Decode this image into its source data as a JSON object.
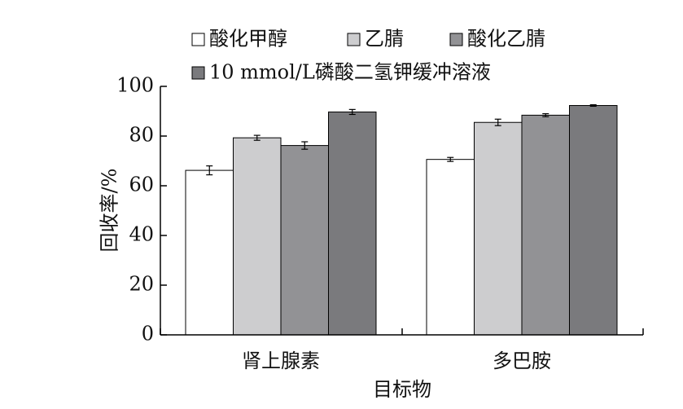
{
  "chart_data": {
    "type": "bar",
    "title": "",
    "xlabel": "目标物",
    "ylabel": "回收率/%",
    "ylim": [
      0,
      100
    ],
    "yticks": [
      0,
      20,
      40,
      60,
      80,
      100
    ],
    "grid": false,
    "legend_position": "top",
    "categories": [
      "肾上腺素",
      "多巴胺"
    ],
    "series": [
      {
        "name": "酸化甲醇",
        "color": "#ffffff",
        "values": [
          66.2,
          70.6
        ],
        "errors": [
          1.8,
          0.8
        ]
      },
      {
        "name": "乙腈",
        "color": "#cdcdcf",
        "values": [
          79.3,
          85.5
        ],
        "errors": [
          1.0,
          1.3
        ]
      },
      {
        "name": "酸化乙腈",
        "color": "#929295",
        "values": [
          76.2,
          88.4
        ],
        "errors": [
          1.5,
          0.6
        ]
      },
      {
        "name": "10 mmol/L磷酸二氢钾缓冲溶液",
        "color": "#7a7a7d",
        "values": [
          89.7,
          92.3
        ],
        "errors": [
          1.0,
          0.3
        ]
      }
    ]
  }
}
